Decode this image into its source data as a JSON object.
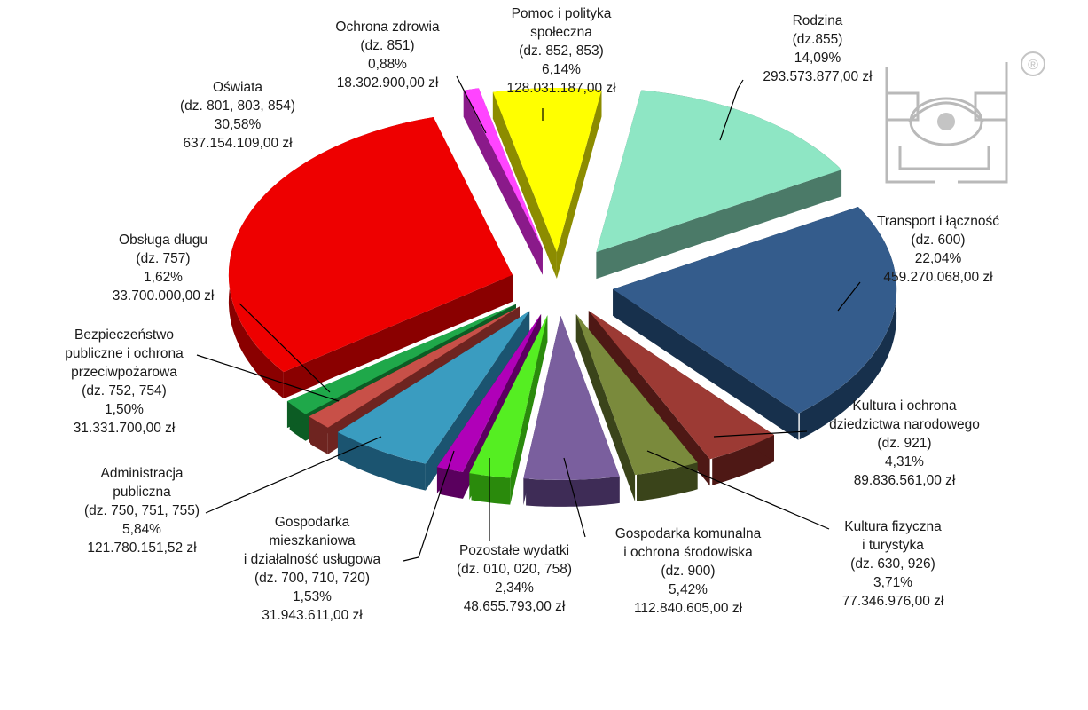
{
  "chart_data": {
    "type": "pie",
    "style": "3d-exploded",
    "slices": [
      {
        "lines": [
          "Pomoc i polityka",
          "społeczna",
          "(dz. 852, 853)",
          "6,14%",
          "128.031.187,00 zł"
        ],
        "value": 6.14,
        "amount": 128031187.0,
        "color": "#ffff00",
        "side": "#8c8c00"
      },
      {
        "lines": [
          "Rodzina",
          "(dz.855)",
          "14,09%",
          "293.573.877,00 zł"
        ],
        "value": 14.09,
        "amount": 293573877.0,
        "color": "#8ee6c4",
        "side": "#4b7a68"
      },
      {
        "lines": [
          "Transport i łączność",
          "(dz. 600)",
          "22,04%",
          "459.270.068,00 zł"
        ],
        "value": 22.04,
        "amount": 459270068.0,
        "color": "#345c8c",
        "side": "#17304c"
      },
      {
        "lines": [
          "Kultura i ochrona",
          "dziedzictwa narodowego",
          "(dz. 921)",
          "4,31%",
          "89.836.561,00 zł"
        ],
        "value": 4.31,
        "amount": 89836561.0,
        "color": "#9c3a34",
        "side": "#4e1815"
      },
      {
        "lines": [
          "Kultura fizyczna",
          "i turystyka",
          "(dz. 630, 926)",
          "3,71%",
          "77.346.976,00 zł"
        ],
        "value": 3.71,
        "amount": 77346976.0,
        "color": "#7a8a3c",
        "side": "#3a441a"
      },
      {
        "lines": [
          "Gospodarka komunalna",
          "i ochrona środowiska",
          "(dz. 900)",
          "5,42%",
          "112.840.605,00 zł"
        ],
        "value": 5.42,
        "amount": 112840605.0,
        "color": "#7a5f9e",
        "side": "#3e2c56"
      },
      {
        "lines": [
          "Pozostałe wydatki",
          "(dz. 010, 020, 758)",
          "2,34%",
          "48.655.793,00 zł"
        ],
        "value": 2.34,
        "amount": 48655793.0,
        "color": "#55ee22",
        "side": "#2a8a0c"
      },
      {
        "lines": [
          "Gospodarka",
          "mieszkaniowa",
          "i działalność usługowa",
          "(dz. 700, 710, 720)",
          "1,53%",
          "31.943.611,00 zł"
        ],
        "value": 1.53,
        "amount": 31943611.0,
        "color": "#b000b8",
        "side": "#5a005e"
      },
      {
        "lines": [
          "Administracja",
          "publiczna",
          "(dz. 750, 751, 755)",
          "5,84%",
          "121.780.151,52 zł"
        ],
        "value": 5.84,
        "amount": 121780151.52,
        "color": "#3a9cc0",
        "side": "#1b5470"
      },
      {
        "lines": [
          "Bezpieczeństwo",
          "publiczne i ochrona",
          "przeciwpożarowa",
          "(dz. 752, 754)",
          "1,50%",
          "31.331.700,00 zł"
        ],
        "value": 1.5,
        "amount": 31331700.0,
        "color": "#c85048",
        "side": "#6e2420"
      },
      {
        "lines": [
          "Obsługa długu",
          "(dz. 757)",
          "1,62%",
          "33.700.000,00 zł"
        ],
        "value": 1.62,
        "amount": 33700000.0,
        "color": "#1fa84a",
        "side": "#0c5c24"
      },
      {
        "lines": [
          "Oświata",
          "(dz. 801, 803, 854)",
          "30,58%",
          "637.154.109,00 zł"
        ],
        "value": 30.58,
        "amount": 637154109.0,
        "color": "#ee0000",
        "side": "#8a0000"
      },
      {
        "lines": [
          "Ochrona zdrowia",
          "(dz. 851)",
          "0,88%",
          "18.302.900,00 zł"
        ],
        "value": 0.88,
        "amount": 18302900.0,
        "color": "#ff44ff",
        "side": "#8a1a8a"
      }
    ]
  },
  "watermark": {
    "registered_mark": "®",
    "logo_icon": "eye-logo-icon"
  }
}
